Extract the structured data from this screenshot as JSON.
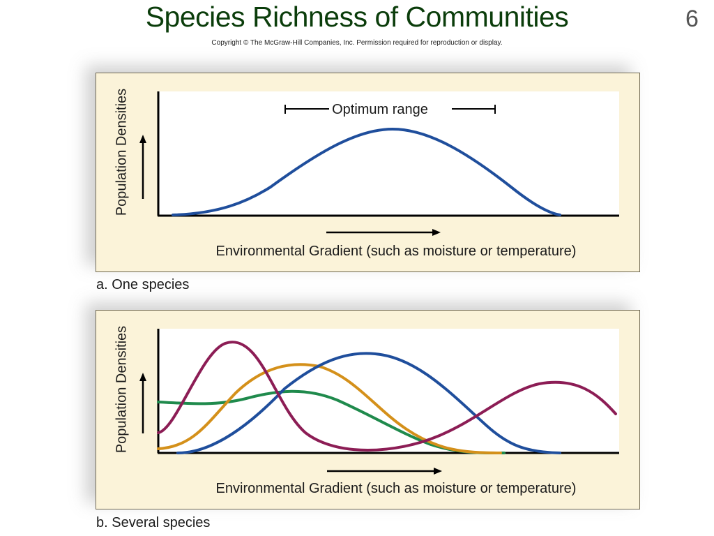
{
  "slide": {
    "title": "Species Richness of Communities",
    "number": "6",
    "copyright": "Copyright © The McGraw-Hill Companies, Inc. Permission required for reproduction or display."
  },
  "panels": [
    {
      "caption": "a. One species",
      "ylabel": "Population Densities",
      "xlabel": "Environmental Gradient (such as moisture or temperature)",
      "annotation": "Optimum range"
    },
    {
      "caption": "b. Several species",
      "ylabel": "Population Densities",
      "xlabel": "Environmental Gradient (such as moisture or temperature)"
    }
  ],
  "colors": {
    "title": "#0b3d0b",
    "panel_bg": "#fbf3d9",
    "plot_bg": "#ffffff",
    "blue": "#1f4e9c",
    "maroon": "#8c1d55",
    "orange": "#d4901a",
    "green": "#1f8a4c"
  }
}
